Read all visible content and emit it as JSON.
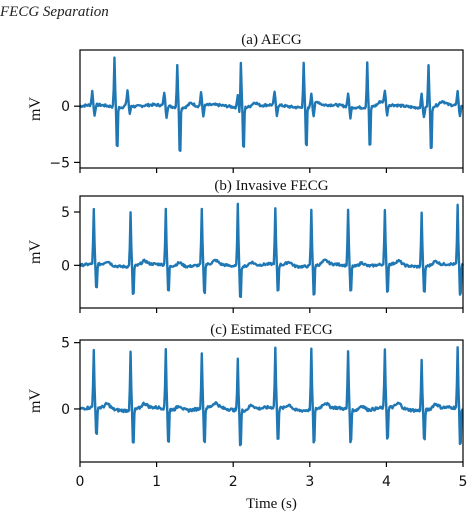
{
  "page": {
    "heading": "FECG Separation"
  },
  "chart_data": {
    "type": "line",
    "xlabel": "Time (s)",
    "xlim": [
      0,
      5
    ],
    "x_ticks": [
      0,
      1,
      2,
      3,
      4,
      5
    ],
    "sample_rate_hz": 100,
    "color": "#1f77b4",
    "grid": false,
    "legend": "none",
    "panels": [
      {
        "title": "(a) AECG",
        "ylabel": "mV",
        "ylim": [
          -5.5,
          5
        ],
        "y_ticks": [
          -5,
          0
        ],
        "beats": [
          {
            "t": 0.45,
            "up": 4.3,
            "down": -4.4
          },
          {
            "t": 1.27,
            "up": 3.8,
            "down": -4.8
          },
          {
            "t": 2.1,
            "up": 4.5,
            "down": -4.5
          },
          {
            "t": 2.92,
            "up": 4.0,
            "down": -4.3
          },
          {
            "t": 3.75,
            "up": 4.0,
            "down": -4.3
          },
          {
            "t": 4.55,
            "up": 3.8,
            "down": -4.8
          }
        ],
        "small_beats": [
          0.16,
          0.62,
          1.1,
          1.58,
          2.06,
          2.54,
          3.02,
          3.5,
          3.98,
          4.46,
          4.93
        ],
        "small_amplitude": 1.2
      },
      {
        "title": "(b) Invasive FECG",
        "ylabel": "mV",
        "ylim": [
          -4,
          6.5
        ],
        "y_ticks": [
          0,
          5
        ],
        "beats": [
          {
            "t": 0.18,
            "up": 5.1,
            "down": -2.8
          },
          {
            "t": 0.66,
            "up": 5.0,
            "down": -3.3
          },
          {
            "t": 1.12,
            "up": 5.3,
            "down": -3.0
          },
          {
            "t": 1.59,
            "up": 5.2,
            "down": -3.3
          },
          {
            "t": 2.06,
            "up": 5.8,
            "down": -3.5
          },
          {
            "t": 2.55,
            "up": 5.2,
            "down": -3.1
          },
          {
            "t": 3.02,
            "up": 5.2,
            "down": -3.4
          },
          {
            "t": 3.5,
            "up": 5.3,
            "down": -3.0
          },
          {
            "t": 3.98,
            "up": 5.0,
            "down": -3.2
          },
          {
            "t": 4.46,
            "up": 5.1,
            "down": -3.1
          },
          {
            "t": 4.93,
            "up": 5.5,
            "down": -3.5
          }
        ]
      },
      {
        "title": "(c) Estimated FECG",
        "ylabel": "mV",
        "ylim": [
          -4,
          5.2
        ],
        "y_ticks": [
          0,
          5
        ],
        "beats": [
          {
            "t": 0.18,
            "up": 4.4,
            "down": -2.6
          },
          {
            "t": 0.66,
            "up": 4.3,
            "down": -3.2
          },
          {
            "t": 1.12,
            "up": 4.5,
            "down": -3.1
          },
          {
            "t": 1.59,
            "up": 4.2,
            "down": -3.2
          },
          {
            "t": 2.06,
            "up": 3.8,
            "down": -3.3
          },
          {
            "t": 2.55,
            "up": 4.5,
            "down": -2.9
          },
          {
            "t": 3.02,
            "up": 4.5,
            "down": -3.1
          },
          {
            "t": 3.5,
            "up": 4.4,
            "down": -3.0
          },
          {
            "t": 3.98,
            "up": 4.4,
            "down": -2.9
          },
          {
            "t": 4.46,
            "up": 3.8,
            "down": -2.8
          },
          {
            "t": 4.93,
            "up": 4.5,
            "down": -3.3
          }
        ]
      }
    ]
  }
}
